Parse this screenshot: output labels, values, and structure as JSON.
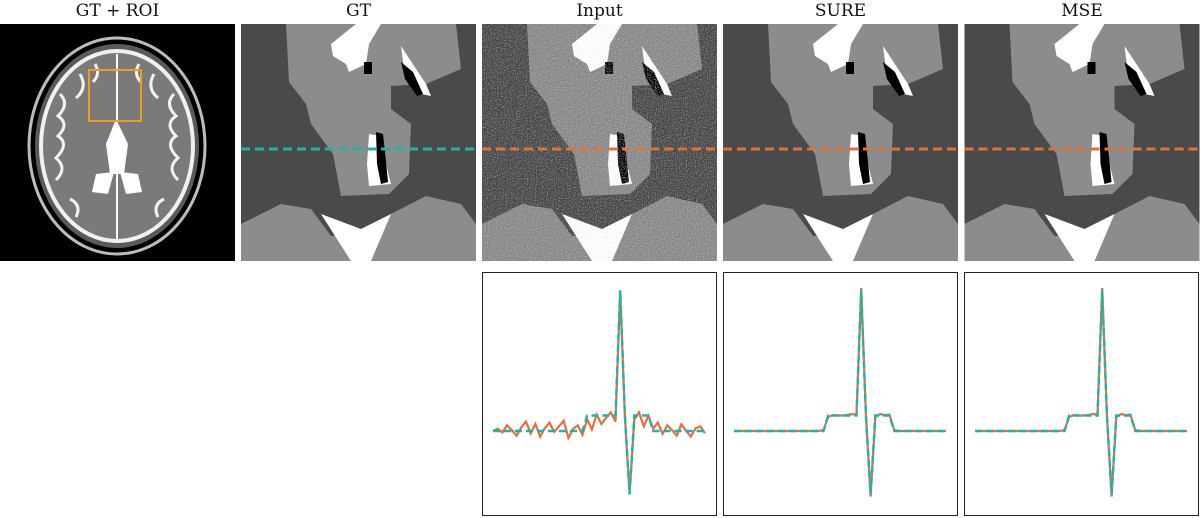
{
  "columns": [
    {
      "title": "GT + ROI"
    },
    {
      "title": "GT"
    },
    {
      "title": "Input"
    },
    {
      "title": "SURE"
    },
    {
      "title": "MSE"
    }
  ],
  "colors": {
    "roi_box": "#e8a020",
    "gt_line": "#20b2aa",
    "profile_line": "#e07040",
    "tissue_dark": "#4a4a4a",
    "tissue_mid": "#8c8c8c",
    "tissue_bright": "#ffffff",
    "void": "#000000"
  },
  "profiles": {
    "input": [
      0.0,
      0.05,
      -0.03,
      0.12,
      0.02,
      -0.1,
      0.08,
      0.2,
      -0.05,
      0.15,
      -0.12,
      0.06,
      0.18,
      -0.02,
      0.1,
      0.22,
      -0.15,
      0.05,
      0.12,
      -0.08,
      0.25,
      0.03,
      0.35,
      0.15,
      0.28,
      0.4,
      0.2,
      3.0,
      0.3,
      -1.35,
      0.25,
      0.4,
      0.1,
      0.32,
      0.05,
      0.18,
      -0.06,
      0.12,
      0.02,
      -0.1,
      0.14,
      0.0,
      -0.12,
      0.06,
      0.1,
      -0.05
    ],
    "sure": [
      0.0,
      0.0,
      0.0,
      0.0,
      0.0,
      0.0,
      0.0,
      0.0,
      0.0,
      0.0,
      0.0,
      0.0,
      0.0,
      0.0,
      0.0,
      0.0,
      0.0,
      0.0,
      0.0,
      0.02,
      0.3,
      0.34,
      0.33,
      0.33,
      0.34,
      0.36,
      0.35,
      3.05,
      0.35,
      -1.4,
      0.3,
      0.36,
      0.34,
      0.35,
      0.02,
      0.0,
      0.0,
      0.0,
      0.0,
      0.0,
      0.0,
      0.0,
      0.0,
      0.0,
      0.0,
      0.0
    ],
    "mse": [
      0.0,
      0.0,
      0.0,
      0.0,
      0.0,
      0.0,
      0.0,
      0.0,
      0.0,
      0.0,
      0.0,
      0.0,
      0.0,
      0.0,
      0.0,
      0.0,
      0.0,
      0.0,
      0.0,
      0.02,
      0.3,
      0.34,
      0.33,
      0.33,
      0.34,
      0.36,
      0.35,
      3.05,
      0.35,
      -1.4,
      0.3,
      0.36,
      0.34,
      0.35,
      0.02,
      0.0,
      0.0,
      0.0,
      0.0,
      0.0,
      0.0,
      0.0,
      0.0,
      0.0,
      0.0,
      0.0
    ],
    "gt": [
      0.0,
      0.0,
      0.0,
      0.0,
      0.0,
      0.0,
      0.0,
      0.0,
      0.0,
      0.0,
      0.0,
      0.0,
      0.0,
      0.0,
      0.0,
      0.0,
      0.0,
      0.0,
      0.0,
      0.0,
      0.33,
      0.33,
      0.33,
      0.33,
      0.33,
      0.33,
      0.33,
      3.0,
      0.33,
      -1.35,
      0.33,
      0.33,
      0.33,
      0.33,
      0.0,
      0.0,
      0.0,
      0.0,
      0.0,
      0.0,
      0.0,
      0.0,
      0.0,
      0.0,
      0.0,
      0.0
    ]
  }
}
